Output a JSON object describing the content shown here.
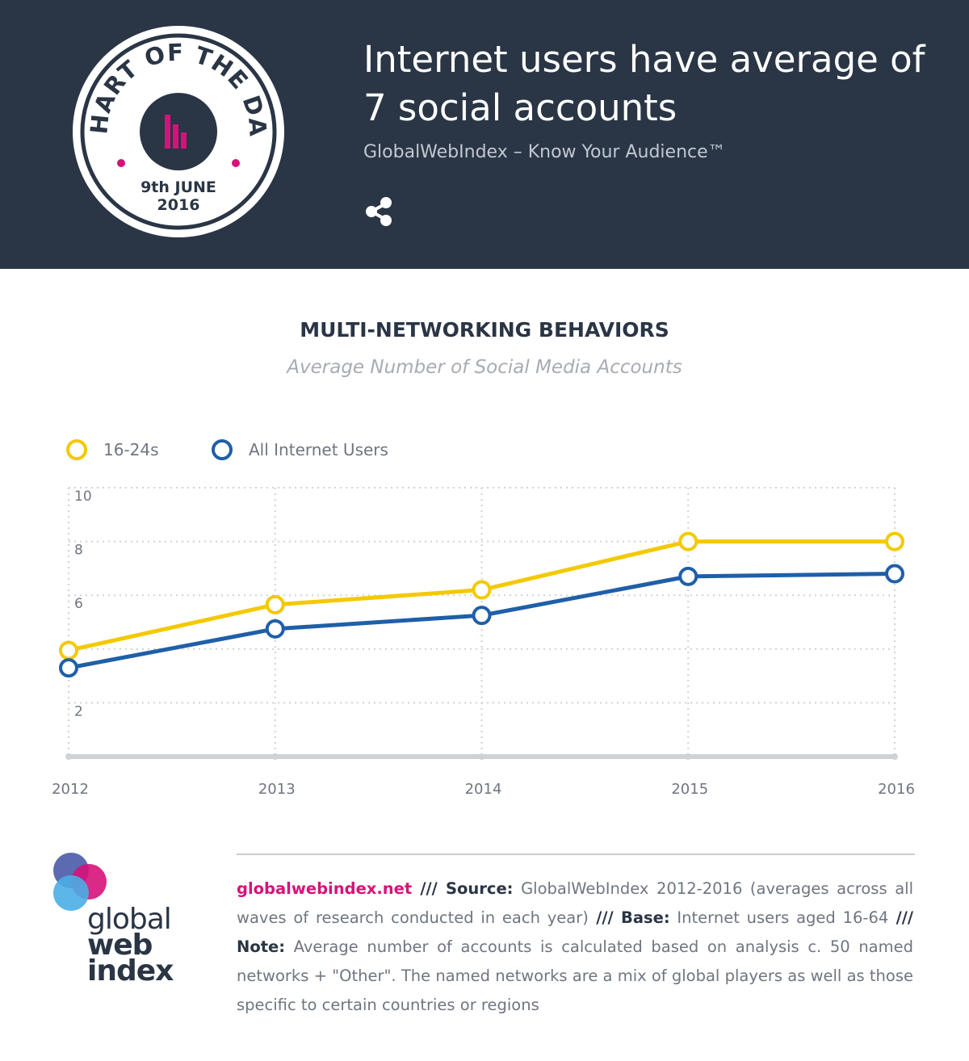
{
  "header": {
    "badge": {
      "ring_text": "CHART OF THE DAY",
      "date_line1": "9th JUNE",
      "date_line2": "2016"
    },
    "headline": "Internet users have average of 7 social accounts",
    "tagline": "GlobalWebIndex – Know Your Audience™",
    "share_icon": "share-icon"
  },
  "colors": {
    "header_bg": "#2a3545",
    "accent_pink": "#d6127a",
    "series_16_24": "#f4c900",
    "series_all": "#1f5fa8"
  },
  "chart_data": {
    "type": "line",
    "title": "MULTI-NETWORKING BEHAVIORS",
    "subtitle": "Average Number of Social Media Accounts",
    "xlabel": "",
    "ylabel": "",
    "x": [
      "2012",
      "2013",
      "2014",
      "2015",
      "2016"
    ],
    "ylim": [
      0,
      10
    ],
    "y_ticks": [
      2,
      6,
      8,
      10
    ],
    "grid": true,
    "legend_position": "top-left",
    "series": [
      {
        "name": "16-24s",
        "color": "#f4c900",
        "values": [
          3.95,
          5.65,
          6.2,
          8.0,
          8.0
        ]
      },
      {
        "name": "All Internet Users",
        "color": "#1f5fa8",
        "values": [
          3.3,
          4.75,
          5.25,
          6.7,
          6.8
        ]
      }
    ]
  },
  "footer": {
    "site": "globalwebindex.net",
    "sep": " /// ",
    "source_label": "Source:",
    "source_text": " GlobalWebIndex 2012-2016 (averages across all waves of research conducted in each year)",
    "base_label": "Base:",
    "base_text": " Internet users aged 16-64",
    "note_label": "Note:",
    "note_text": " Average number of accounts is calculated based on analysis c. 50 named networks + \"Other\". The named networks are a mix of global players as well as those specific to certain countries or regions"
  },
  "logo": {
    "line1": "global",
    "line2": "web",
    "line3": "index"
  }
}
